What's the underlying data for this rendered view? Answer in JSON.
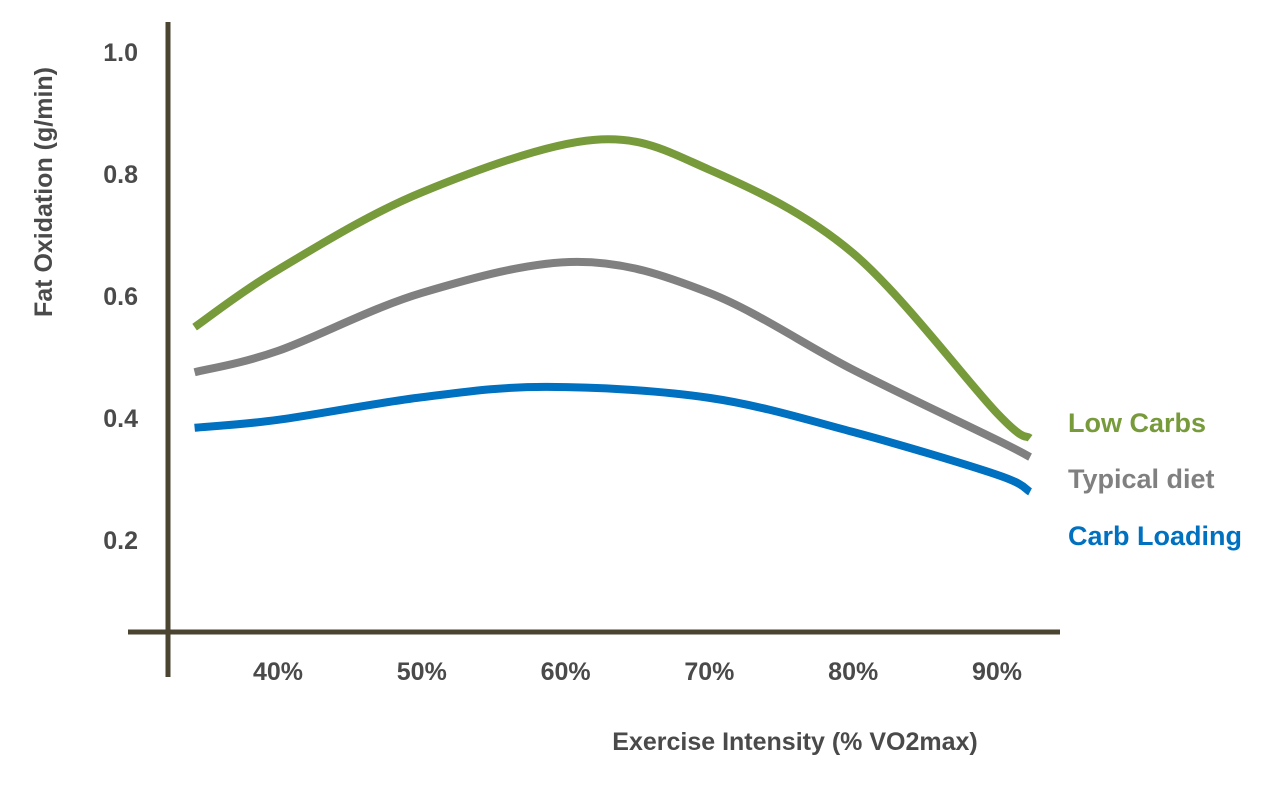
{
  "chart_data": {
    "type": "line",
    "title": "",
    "xlabel": "Exercise Intensity (% VO2max)",
    "ylabel": "Fat Oxidation (g/min)",
    "x_ticks": [
      40,
      50,
      60,
      70,
      80,
      90
    ],
    "x_tick_labels": [
      "40%",
      "50%",
      "60%",
      "70%",
      "80%",
      "90%"
    ],
    "y_ticks": [
      0.2,
      0.4,
      0.6,
      0.8,
      1.0
    ],
    "y_tick_labels": [
      "0.2",
      "0.4",
      "0.6",
      "0.8",
      "1.0"
    ],
    "xlim": [
      31,
      96
    ],
    "ylim": [
      0,
      1.05
    ],
    "grid": false,
    "legend": "right, inline labels",
    "axis_color": "#4a4430",
    "series": [
      {
        "name": "Low Carbs",
        "color": "#779a3b",
        "x": [
          34.2,
          40,
          50,
          62,
          70,
          80,
          90,
          92.3
        ],
        "y": [
          0.549,
          0.643,
          0.77,
          0.856,
          0.807,
          0.67,
          0.408,
          0.367
        ]
      },
      {
        "name": "Typical diet",
        "color": "#808080",
        "x": [
          34.2,
          40,
          50,
          60.8,
          70,
          80,
          90,
          92.3
        ],
        "y": [
          0.475,
          0.51,
          0.605,
          0.656,
          0.605,
          0.479,
          0.364,
          0.336
        ]
      },
      {
        "name": "Carb Loading",
        "color": "#0070c0",
        "x": [
          34.2,
          40,
          50,
          58.7,
          70,
          80,
          90,
          92.3
        ],
        "y": [
          0.384,
          0.397,
          0.434,
          0.451,
          0.433,
          0.377,
          0.307,
          0.279
        ]
      }
    ]
  }
}
